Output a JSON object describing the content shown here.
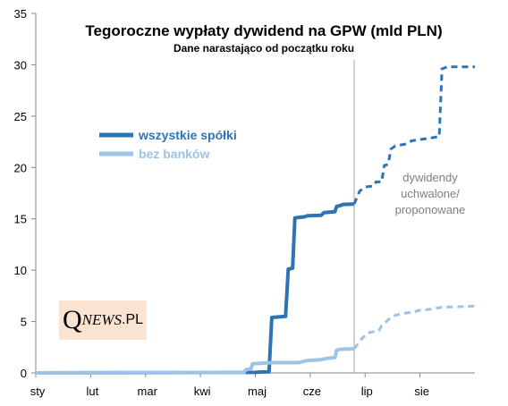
{
  "chart_data": {
    "type": "line",
    "title": "Tegoroczne wypłaty dywidend na GPW (mld PLN)",
    "subtitle": "Dane narastająco od początku roku",
    "xlabel": "",
    "ylabel": "",
    "x_ticks": [
      "sty",
      "lut",
      "mar",
      "kwi",
      "maj",
      "cze",
      "lip",
      "sie"
    ],
    "xlim": [
      0,
      8
    ],
    "ylim": [
      0,
      35
    ],
    "y_ticks": [
      0,
      5,
      10,
      15,
      20,
      25,
      30,
      35
    ],
    "grid": false,
    "legend_position": "center-left",
    "divider_x": 5.8,
    "annotation": "dywidendy\nuchwalone/\nproponowane",
    "series": [
      {
        "name": "wszystkie spółki",
        "color": "#2e74b5",
        "actual": [
          [
            0,
            0
          ],
          [
            4.0,
            0.05
          ],
          [
            4.15,
            0.1
          ],
          [
            4.25,
            0.1
          ],
          [
            4.3,
            5.4
          ],
          [
            4.55,
            5.5
          ],
          [
            4.6,
            10.1
          ],
          [
            4.68,
            10.2
          ],
          [
            4.72,
            15.1
          ],
          [
            4.9,
            15.2
          ],
          [
            4.95,
            15.3
          ],
          [
            5.2,
            15.35
          ],
          [
            5.25,
            15.6
          ],
          [
            5.45,
            15.7
          ],
          [
            5.48,
            16.2
          ],
          [
            5.55,
            16.3
          ],
          [
            5.6,
            16.4
          ],
          [
            5.8,
            16.45
          ]
        ],
        "planned": [
          [
            5.8,
            16.45
          ],
          [
            5.9,
            17.7
          ],
          [
            6.0,
            18.1
          ],
          [
            6.15,
            18.2
          ],
          [
            6.2,
            18.6
          ],
          [
            6.3,
            18.6
          ],
          [
            6.35,
            20.2
          ],
          [
            6.42,
            20.3
          ],
          [
            6.47,
            21.8
          ],
          [
            6.55,
            22.1
          ],
          [
            6.75,
            22.3
          ],
          [
            6.85,
            22.6
          ],
          [
            7.1,
            22.8
          ],
          [
            7.35,
            23.0
          ],
          [
            7.4,
            29.6
          ],
          [
            7.5,
            29.8
          ],
          [
            8.0,
            29.8
          ]
        ]
      },
      {
        "name": "bez banków",
        "color": "#9dc3e6",
        "actual": [
          [
            0,
            0
          ],
          [
            3.7,
            0.05
          ],
          [
            3.8,
            0.05
          ],
          [
            3.82,
            0.3
          ],
          [
            3.92,
            0.4
          ],
          [
            3.95,
            0.9
          ],
          [
            4.3,
            1.0
          ],
          [
            4.8,
            1.0
          ],
          [
            4.85,
            1.1
          ],
          [
            4.95,
            1.2
          ],
          [
            5.2,
            1.3
          ],
          [
            5.28,
            1.4
          ],
          [
            5.45,
            1.5
          ],
          [
            5.48,
            2.2
          ],
          [
            5.55,
            2.3
          ],
          [
            5.8,
            2.35
          ]
        ],
        "planned": [
          [
            5.8,
            2.35
          ],
          [
            5.95,
            3.4
          ],
          [
            6.05,
            3.9
          ],
          [
            6.25,
            4.1
          ],
          [
            6.3,
            4.6
          ],
          [
            6.45,
            5.3
          ],
          [
            6.55,
            5.6
          ],
          [
            6.7,
            5.8
          ],
          [
            6.85,
            5.9
          ],
          [
            7.0,
            6.1
          ],
          [
            7.2,
            6.2
          ],
          [
            7.4,
            6.4
          ],
          [
            8.0,
            6.5
          ]
        ]
      }
    ]
  },
  "logo": {
    "q": "Q",
    "news": "NEWS",
    "pl": ".PL"
  }
}
